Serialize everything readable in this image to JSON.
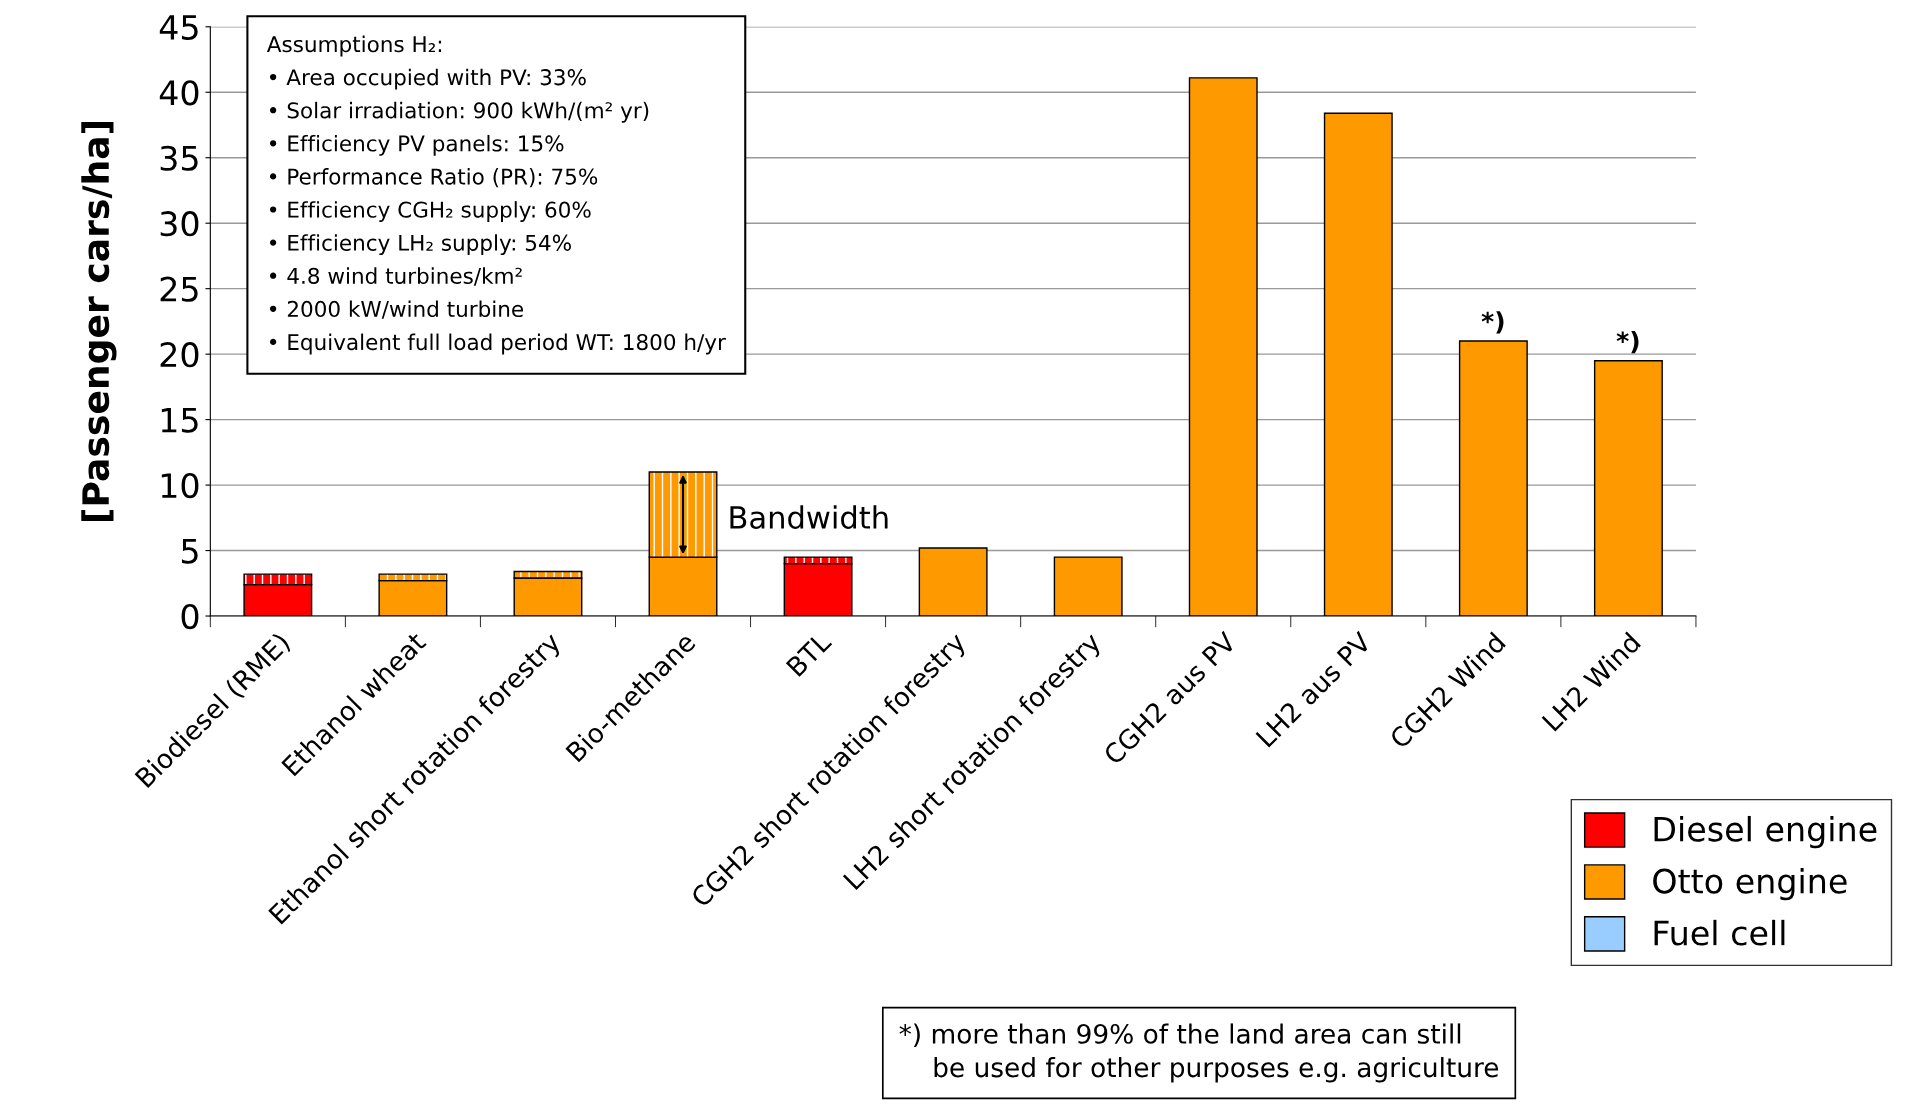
{
  "chart_data": {
    "type": "bar",
    "stacked": true,
    "categories": [
      "Biodiesel (RME)",
      "Ethanol wheat",
      "Ethanol short rotation forestry",
      "Bio-methane",
      "BTL",
      "CGH2 short rotation forestry",
      "LH2 short rotation forestry",
      "CGH2 aus PV",
      "LH2 aus PV",
      "CGH2 Wind",
      "LH2 Wind"
    ],
    "series": [
      {
        "name": "Diesel engine",
        "color": "#ff0000",
        "values": [
          2.4,
          null,
          null,
          null,
          4.0,
          null,
          null,
          null,
          null,
          null,
          null
        ]
      },
      {
        "name": "Otto engine",
        "color": "#ff9900",
        "values": [
          null,
          2.7,
          2.9,
          4.5,
          null,
          5.2,
          4.5,
          41.1,
          38.4,
          21.0,
          19.5
        ]
      },
      {
        "colors": [
          "#ff0000",
          "#ff9900",
          "#ff9900",
          "#ff9900",
          "#ff0000",
          "#ff9900",
          "#ff9900",
          "#ff9900",
          "#ff9900",
          "#ff9900",
          "#ff9900"
        ],
        "values": [
          0.8,
          0.5,
          0.5,
          6.5,
          0.5,
          null,
          null,
          null,
          null,
          null,
          null
        ]
      },
      {
        "name": "Fuel cell",
        "color": "#99ccff",
        "values": [
          null,
          null,
          null,
          null,
          null,
          null,
          null,
          null,
          null,
          null,
          null
        ]
      }
    ],
    "ylabel": "[Passenger cars/ha]",
    "ylim": [
      0,
      45
    ],
    "yticks": [
      0,
      5,
      10,
      15,
      20,
      25,
      30,
      35,
      40,
      45
    ],
    "grid": "y",
    "legend": "bottom right",
    "annotations": [
      {
        "text": "*)",
        "x": "CGH2 Wind",
        "y": 21.0
      },
      {
        "text": "*)",
        "x": "LH2 Wind",
        "y": 19.5
      },
      "Assumptions H₂:\n• Area occupied with PV: 33%\n• Solar irradiation: 900 kWh/(m² yr)\n• Efficiency PV panels: 15%\n• Performance Ratio (PR): 75%\n• Efficiency CGH₂ supply: 60%\n• Efficiency LH₂ supply: 54%\n• 4.8 wind turbines/km²\n• 2000 kW/wind turbine\n• Equivalent full load period WT: 1800 h/yr",
      "*) more than 99% of the land area can still\n    be used for other purposes e.g. agriculture",
      "Bandwidth"
    ]
  }
}
